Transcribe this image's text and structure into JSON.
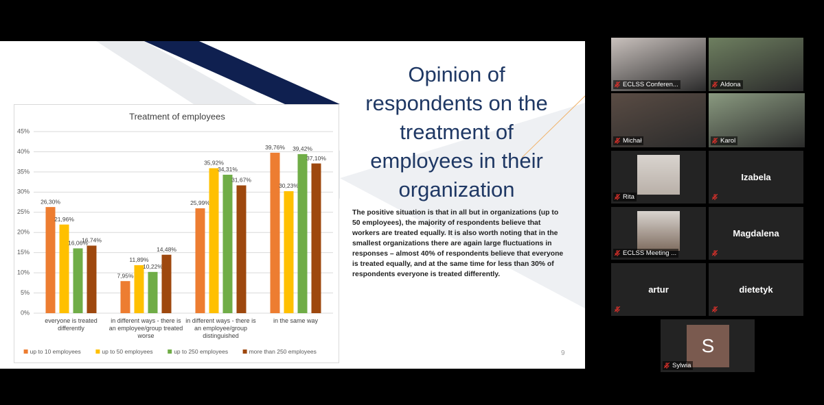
{
  "slide": {
    "title": "Opinion of respondents on the treatment of employees in their organization",
    "body": "The positive situation is that in all but in organizations (up to 50 employees), the majority of respondents believe that workers are treated equally.  It is also worth noting that in the smallest organizations there are again large fluctuations in responses – almost 40% of respondents believe that everyone is treated equally, and at the same time for less than 30% of respondents everyone is treated differently.",
    "page_number": "9",
    "chart": {
      "type": "bar",
      "title": "Treatment of employees",
      "categories": [
        "everyone is treated differently",
        "in different ways - there is an employee/group treated worse",
        "in different ways - there is an employee/group distinguished",
        "in the same way"
      ],
      "series": [
        {
          "name": "up to 10 employees",
          "color": "#ed7d31",
          "values": [
            26.3,
            7.95,
            25.99,
            39.76
          ],
          "value_labels": [
            "26,30%",
            "7,95%",
            "25,99%",
            "39,76%"
          ]
        },
        {
          "name": "up to 50 employees",
          "color": "#ffc000",
          "values": [
            21.96,
            11.89,
            35.92,
            30.23
          ],
          "value_labels": [
            "21,96%",
            "11,89%",
            "35,92%",
            "30,23%"
          ]
        },
        {
          "name": "up to 250 employees",
          "color": "#70ad47",
          "values": [
            16.06,
            10.22,
            34.31,
            39.42
          ],
          "value_labels": [
            "16,06%",
            "10,22%",
            "34,31%",
            "39,42%"
          ]
        },
        {
          "name": "more than 250 employees",
          "color": "#9e480e",
          "values": [
            16.74,
            14.48,
            31.67,
            37.1
          ],
          "value_labels": [
            "16,74%",
            "14,48%",
            "31,67%",
            "37,10%"
          ]
        }
      ],
      "ylim": [
        0,
        45
      ],
      "yticks": [
        {
          "value": 0,
          "label": "0%"
        },
        {
          "value": 5,
          "label": "5%"
        },
        {
          "value": 10,
          "label": "10%"
        },
        {
          "value": 15,
          "label": "15%"
        },
        {
          "value": 20,
          "label": "20%"
        },
        {
          "value": 25,
          "label": "25%"
        },
        {
          "value": 30,
          "label": "30%"
        },
        {
          "value": 35,
          "label": "35%"
        },
        {
          "value": 40,
          "label": "40%"
        },
        {
          "value": 45,
          "label": "45%"
        }
      ],
      "grid": true,
      "legend": "bottom"
    }
  },
  "participants": [
    {
      "name": "ECLSS Conferen..."
    },
    {
      "name": "Aldona"
    },
    {
      "name": "Michał"
    },
    {
      "name": "Karol"
    },
    {
      "name": "Rita"
    },
    {
      "name": "Izabela"
    },
    {
      "name": "ECLSS Meeting ..."
    },
    {
      "name": "Magdalena"
    },
    {
      "name": "artur"
    },
    {
      "name": "dietetyk"
    },
    {
      "name": "Sylwia",
      "avatar": "S"
    }
  ]
}
